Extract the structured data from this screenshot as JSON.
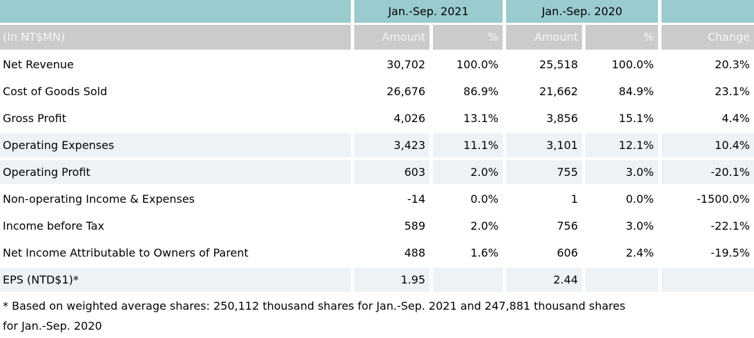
{
  "colors": {
    "teal_header": "#9acbce",
    "gray_header": "#cbcbcb",
    "shaded_row": "#edf2f6",
    "header_text": "#f5f5f5",
    "body_text": "#000000"
  },
  "table": {
    "unit_label": "(In NT$MN)",
    "col_groups": [
      {
        "label": "Jan.-Sep. 2021"
      },
      {
        "label": "Jan.-Sep. 2020"
      }
    ],
    "sub_headers": {
      "amount_2021": "Amount",
      "pct_2021": "%",
      "amount_2020": "Amount",
      "pct_2020": "%",
      "change": "Change"
    },
    "rows": [
      {
        "label": "Net Revenue",
        "amount_2021": "30,702",
        "pct_2021": "100.0%",
        "amount_2020": "25,518",
        "pct_2020": "100.0%",
        "change": "20.3%"
      },
      {
        "label": "Cost of Goods Sold",
        "amount_2021": "26,676",
        "pct_2021": "86.9%",
        "amount_2020": "21,662",
        "pct_2020": "84.9%",
        "change": "23.1%"
      },
      {
        "label": "Gross Profit",
        "amount_2021": "4,026",
        "pct_2021": "13.1%",
        "amount_2020": "3,856",
        "pct_2020": "15.1%",
        "change": "4.4%"
      },
      {
        "label": "Operating Expenses",
        "amount_2021": "3,423",
        "pct_2021": "11.1%",
        "amount_2020": "3,101",
        "pct_2020": "12.1%",
        "change": "10.4%"
      },
      {
        "label": "Operating Profit",
        "amount_2021": "603",
        "pct_2021": "2.0%",
        "amount_2020": "755",
        "pct_2020": "3.0%",
        "change": "-20.1%"
      },
      {
        "label": "Non-operating Income & Expenses",
        "amount_2021": "-14",
        "pct_2021": "0.0%",
        "amount_2020": "1",
        "pct_2020": "0.0%",
        "change": "-1500.0%"
      },
      {
        "label": "Income before Tax",
        "amount_2021": "589",
        "pct_2021": "2.0%",
        "amount_2020": "756",
        "pct_2020": "3.0%",
        "change": "-22.1%"
      },
      {
        "label": "Net Income Attributable to Owners of Parent",
        "amount_2021": "488",
        "pct_2021": "1.6%",
        "amount_2020": "606",
        "pct_2020": "2.4%",
        "change": "-19.5%"
      },
      {
        "label": "EPS (NTD$1)*",
        "amount_2021": "1.95",
        "pct_2021": "",
        "amount_2020": "2.44",
        "pct_2020": "",
        "change": ""
      }
    ],
    "footnote": {
      "line1": "* Based on weighted average shares: 250,112 thousand shares for Jan.-Sep. 2021 and 247,881 thousand shares",
      "line2": "for Jan.-Sep. 2020"
    }
  }
}
